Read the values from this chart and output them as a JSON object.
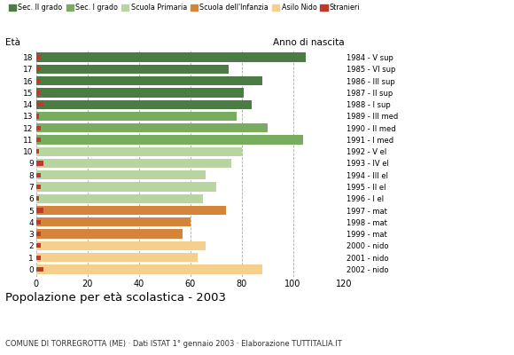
{
  "ages": [
    18,
    17,
    16,
    15,
    14,
    13,
    12,
    11,
    10,
    9,
    8,
    7,
    6,
    5,
    4,
    3,
    2,
    1,
    0
  ],
  "values": [
    105,
    75,
    88,
    81,
    84,
    78,
    90,
    104,
    80,
    76,
    66,
    70,
    65,
    74,
    60,
    57,
    66,
    63,
    88
  ],
  "stranieri": [
    2,
    2,
    2,
    2,
    3,
    1,
    2,
    2,
    1,
    3,
    2,
    2,
    1,
    3,
    2,
    2,
    2,
    2,
    3
  ],
  "anno_nascita": [
    "1984 - V sup",
    "1985 - VI sup",
    "1986 - III sup",
    "1987 - II sup",
    "1988 - I sup",
    "1989 - III med",
    "1990 - II med",
    "1991 - I med",
    "1992 - V el",
    "1993 - IV el",
    "1994 - III el",
    "1995 - II el",
    "1996 - I el",
    "1997 - mat",
    "1998 - mat",
    "1999 - mat",
    "2000 - nido",
    "2001 - nido",
    "2002 - nido"
  ],
  "bar_colors": {
    "sec2": "#4a7c44",
    "sec1": "#7aac60",
    "primaria": "#b8d4a0",
    "infanzia": "#d4853a",
    "nido": "#f5d08c",
    "stranieri": "#c0392b"
  },
  "category_ages": {
    "sec2": [
      14,
      15,
      16,
      17,
      18
    ],
    "sec1": [
      11,
      12,
      13
    ],
    "primaria": [
      6,
      7,
      8,
      9,
      10
    ],
    "infanzia": [
      3,
      4,
      5
    ],
    "nido": [
      0,
      1,
      2
    ]
  },
  "legend_labels": [
    "Sec. II grado",
    "Sec. I grado",
    "Scuola Primaria",
    "Scuola dell'Infanzia",
    "Asilo Nido",
    "Stranieri"
  ],
  "title": "Popolazione per età scolastica - 2003",
  "subtitle": "COMUNE DI TORREGROTTA (ME) · Dati ISTAT 1° gennaio 2003 · Elaborazione TUTTITALIA.IT",
  "xlabel_eta": "Età",
  "ylabel_anno": "Anno di nascita",
  "xlim": [
    0,
    120
  ],
  "xticks": [
    0,
    20,
    40,
    60,
    80,
    100,
    120
  ],
  "bar_height": 0.78,
  "background_color": "#ffffff",
  "grid_color": "#aaaaaa"
}
